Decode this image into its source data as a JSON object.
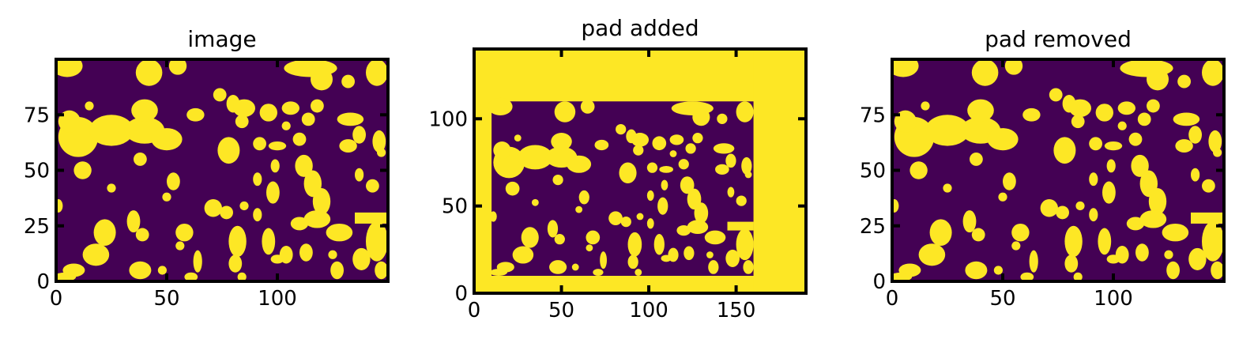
{
  "colors": {
    "background_phase": "#440154",
    "foreground_phase": "#fde725",
    "frame": "#000000"
  },
  "chart_data": [
    {
      "type": "heatmap",
      "title": "image",
      "xlabel": "",
      "ylabel": "",
      "xlim": [
        0,
        150
      ],
      "ylim": [
        0,
        100
      ],
      "x_ticks": [
        0,
        50,
        100
      ],
      "y_ticks": [
        0,
        25,
        50,
        75
      ],
      "image_shape": [
        100,
        150
      ],
      "grid": false,
      "colormap": "viridis (binary: 0 = purple, 1 = yellow)"
    },
    {
      "type": "heatmap",
      "title": "pad added",
      "xlabel": "",
      "ylabel": "",
      "xlim": [
        0,
        190
      ],
      "ylim": [
        0,
        140
      ],
      "x_ticks": [
        0,
        50,
        100,
        150
      ],
      "y_ticks": [
        0,
        50,
        100
      ],
      "image_shape": [
        140,
        190
      ],
      "grid": false,
      "colormap": "viridis (binary: 0 = purple, 1 = yellow)"
    },
    {
      "type": "heatmap",
      "title": "pad removed",
      "xlabel": "",
      "ylabel": "",
      "xlim": [
        0,
        150
      ],
      "ylim": [
        0,
        100
      ],
      "x_ticks": [
        0,
        50,
        100
      ],
      "y_ticks": [
        0,
        25,
        50,
        75
      ],
      "image_shape": [
        100,
        150
      ],
      "grid": false,
      "colormap": "viridis (binary: 0 = purple, 1 = yellow)"
    }
  ]
}
